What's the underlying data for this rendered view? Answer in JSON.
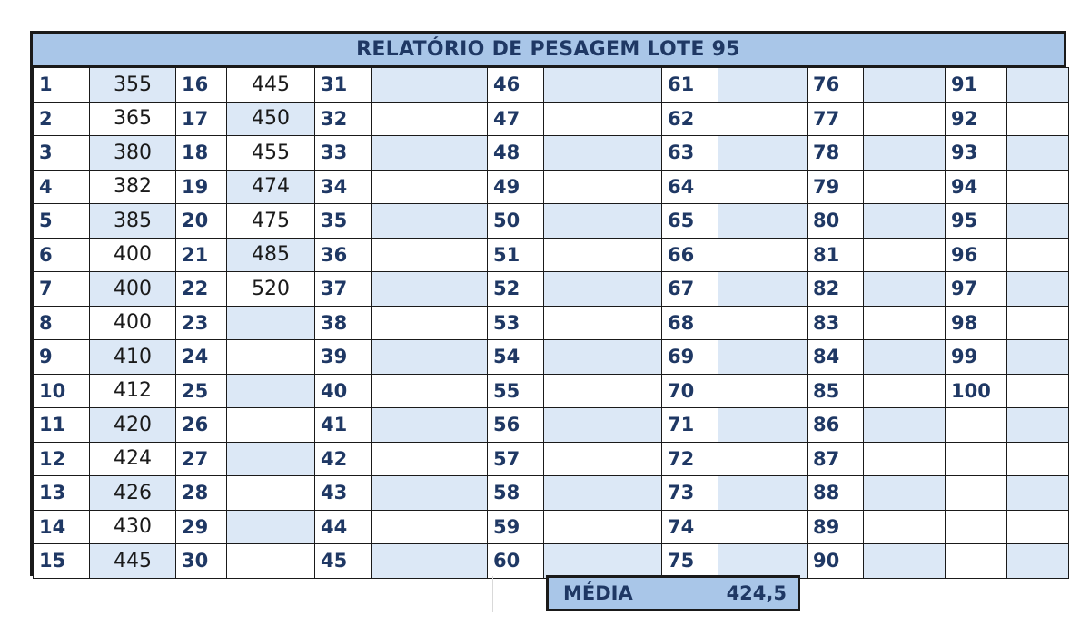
{
  "report": {
    "title": "RELATÓRIO DE PESAGEM LOTE 95",
    "columns": [
      {
        "numbers": [
          "1",
          "2",
          "3",
          "4",
          "5",
          "6",
          "7",
          "8",
          "9",
          "10",
          "11",
          "12",
          "13",
          "14",
          "15"
        ],
        "values": [
          "355",
          "365",
          "380",
          "382",
          "385",
          "400",
          "400",
          "400",
          "410",
          "412",
          "420",
          "424",
          "426",
          "430",
          "445"
        ]
      },
      {
        "numbers": [
          "16",
          "17",
          "18",
          "19",
          "20",
          "21",
          "22",
          "23",
          "24",
          "25",
          "26",
          "27",
          "28",
          "29",
          "30"
        ],
        "values": [
          "445",
          "450",
          "455",
          "474",
          "475",
          "485",
          "520",
          "",
          "",
          "",
          "",
          "",
          "",
          "",
          ""
        ]
      },
      {
        "numbers": [
          "31",
          "32",
          "33",
          "34",
          "35",
          "36",
          "37",
          "38",
          "39",
          "40",
          "41",
          "42",
          "43",
          "44",
          "45"
        ],
        "values": [
          "",
          "",
          "",
          "",
          "",
          "",
          "",
          "",
          "",
          "",
          "",
          "",
          "",
          "",
          ""
        ]
      },
      {
        "numbers": [
          "46",
          "47",
          "48",
          "49",
          "50",
          "51",
          "52",
          "53",
          "54",
          "55",
          "56",
          "57",
          "58",
          "59",
          "60"
        ],
        "values": [
          "",
          "",
          "",
          "",
          "",
          "",
          "",
          "",
          "",
          "",
          "",
          "",
          "",
          "",
          ""
        ]
      },
      {
        "numbers": [
          "61",
          "62",
          "63",
          "64",
          "65",
          "66",
          "67",
          "68",
          "69",
          "70",
          "71",
          "72",
          "73",
          "74",
          "75"
        ],
        "values": [
          "",
          "",
          "",
          "",
          "",
          "",
          "",
          "",
          "",
          "",
          "",
          "",
          "",
          "",
          ""
        ]
      },
      {
        "numbers": [
          "76",
          "77",
          "78",
          "79",
          "80",
          "81",
          "82",
          "83",
          "84",
          "85",
          "86",
          "87",
          "88",
          "89",
          "90"
        ],
        "values": [
          "",
          "",
          "",
          "",
          "",
          "",
          "",
          "",
          "",
          "",
          "",
          "",
          "",
          "",
          ""
        ]
      },
      {
        "numbers": [
          "91",
          "92",
          "93",
          "94",
          "95",
          "96",
          "97",
          "98",
          "99",
          "100",
          "",
          "",
          "",
          "",
          ""
        ],
        "values": [
          "",
          "",
          "",
          "",
          "",
          "",
          "",
          "",
          "",
          "",
          "",
          "",
          "",
          "",
          ""
        ]
      }
    ],
    "media_label": "MÉDIA",
    "media_value": "424,5"
  },
  "colors": {
    "header_fill": "#a9c6e8",
    "stripe_fill": "#dce8f6",
    "number_text": "#1f3864",
    "border": "#1a1a1a"
  }
}
